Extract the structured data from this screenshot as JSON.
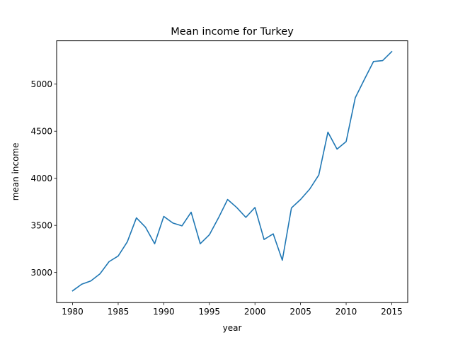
{
  "chart_data": {
    "type": "line",
    "title": "Mean income for Turkey",
    "xlabel": "year",
    "ylabel": "mean income",
    "xlim": [
      1978.25,
      1976.25
    ],
    "ylim": [
      2680,
      5460
    ],
    "xticks": [
      1980,
      1985,
      1990,
      1995,
      2000,
      2005,
      2010,
      2015
    ],
    "yticks": [
      3000,
      3500,
      4000,
      4500,
      5000
    ],
    "grid": false,
    "legend": "none",
    "series": [
      {
        "color": "#1f77b4",
        "x": [
          1980,
          1981,
          1982,
          1983,
          1984,
          1985,
          1986,
          1987,
          1988,
          1989,
          1990,
          1991,
          1992,
          1993,
          1994,
          1995,
          1996,
          1997,
          1998,
          1999,
          2000,
          2001,
          2002,
          2003,
          2004,
          2005,
          2006,
          2007,
          2008,
          2009,
          2010,
          2011,
          2012,
          2013,
          2014,
          2015
        ],
        "y": [
          2805,
          2875,
          2910,
          2985,
          3115,
          3175,
          3325,
          3580,
          3480,
          3305,
          3595,
          3525,
          3495,
          3640,
          3305,
          3400,
          3580,
          3775,
          3690,
          3585,
          3690,
          3350,
          3410,
          3130,
          3685,
          3775,
          3885,
          4035,
          4490,
          4310,
          4390,
          4855,
          5050,
          5240,
          5250,
          5345
        ]
      }
    ]
  }
}
